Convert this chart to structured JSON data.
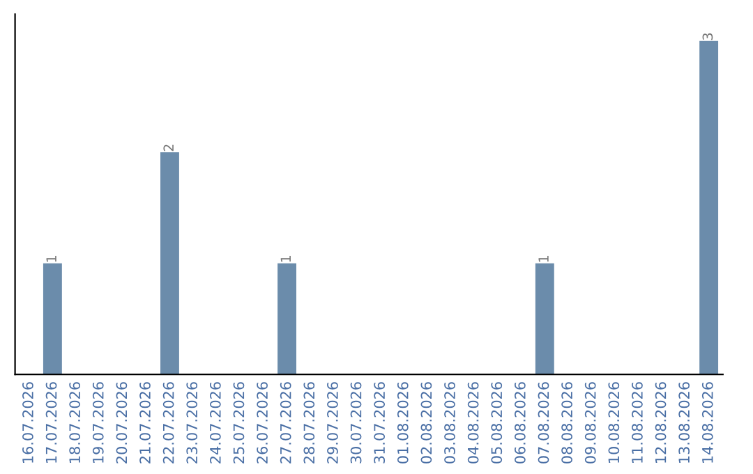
{
  "chart_data": {
    "type": "bar",
    "categories": [
      "16.07.2026",
      "17.07.2026",
      "18.07.2026",
      "19.07.2026",
      "20.07.2026",
      "21.07.2026",
      "22.07.2026",
      "23.07.2026",
      "24.07.2026",
      "25.07.2026",
      "26.07.2026",
      "27.07.2026",
      "28.07.2026",
      "29.07.2026",
      "30.07.2026",
      "31.07.2026",
      "01.08.2026",
      "02.08.2026",
      "03.08.2026",
      "04.08.2026",
      "05.08.2026",
      "06.08.2026",
      "07.08.2026",
      "08.08.2026",
      "09.08.2026",
      "10.08.2026",
      "11.08.2026",
      "12.08.2026",
      "13.08.2026",
      "14.08.2026"
    ],
    "values": [
      0,
      1,
      0,
      0,
      0,
      0,
      2,
      0,
      0,
      0,
      0,
      1,
      0,
      0,
      0,
      0,
      0,
      0,
      0,
      0,
      0,
      0,
      1,
      0,
      0,
      0,
      0,
      0,
      0,
      3
    ],
    "value_labels": [
      null,
      "1",
      null,
      null,
      null,
      null,
      "2",
      null,
      null,
      null,
      null,
      "1",
      null,
      null,
      null,
      null,
      null,
      null,
      null,
      null,
      null,
      null,
      "1",
      null,
      null,
      null,
      null,
      null,
      null,
      "3"
    ],
    "color": "#6b8cab",
    "tick_labels": "x",
    "grid": false
  }
}
